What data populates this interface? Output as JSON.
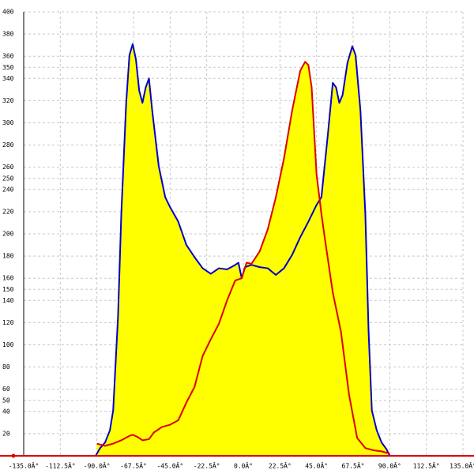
{
  "chart_data": {
    "type": "area-line",
    "fill_color": "#ffff00",
    "axis_color": "#dd0000",
    "grid": true,
    "xlim": [
      -135,
      135
    ],
    "ylim": [
      0,
      400
    ],
    "xticks": [
      {
        "value": -135,
        "label": "-135.0Â°"
      },
      {
        "value": -112.5,
        "label": "-112.5Â°"
      },
      {
        "value": -90,
        "label": "-90.0Â°"
      },
      {
        "value": -67.5,
        "label": "-67.5Â°"
      },
      {
        "value": -45,
        "label": "-45.0Â°"
      },
      {
        "value": -22.5,
        "label": "-22.5Â°"
      },
      {
        "value": 0,
        "label": "0.0Â°"
      },
      {
        "value": 22.5,
        "label": "22.5Â°"
      },
      {
        "value": 45,
        "label": "45.0Â°"
      },
      {
        "value": 67.5,
        "label": "67.5Â°"
      },
      {
        "value": 90,
        "label": "90.0Â°"
      },
      {
        "value": 112.5,
        "label": "112.5Â°"
      },
      {
        "value": 135,
        "label": "135.0Â°"
      }
    ],
    "yticks": [
      20,
      40,
      50,
      60,
      80,
      100,
      120,
      140,
      150,
      160,
      180,
      200,
      220,
      240,
      250,
      260,
      280,
      300,
      320,
      340,
      350,
      360,
      380,
      400
    ],
    "series": [
      {
        "color": "#0000cc",
        "x": [
          -90.8,
          -88,
          -85,
          -82,
          -80,
          -77,
          -75,
          -72,
          -70,
          -68,
          -66,
          -64,
          -62,
          -60,
          -58,
          -56,
          -52,
          -48,
          -45,
          -40,
          -35,
          -30,
          -25,
          -20,
          -15,
          -10,
          -5,
          -3,
          -1,
          1,
          5,
          10,
          15,
          20,
          25,
          30,
          35,
          40,
          45,
          48,
          52,
          55,
          57,
          59,
          61,
          64,
          67,
          69,
          72,
          75,
          77,
          79,
          82,
          85,
          88,
          90
        ],
        "values": [
          0,
          7,
          12,
          23,
          41,
          126,
          218,
          318,
          361,
          371,
          357,
          329,
          318,
          332,
          340,
          311,
          261,
          233,
          224,
          211,
          190,
          179,
          169,
          164,
          169,
          168,
          172,
          174,
          160,
          170,
          172,
          170,
          169,
          163,
          169,
          181,
          197,
          211,
          226,
          233,
          290,
          336,
          332,
          318,
          325,
          354,
          369,
          361,
          311,
          218,
          112,
          41,
          23,
          12,
          6,
          0
        ]
      },
      {
        "color": "#dd0000",
        "x": [
          -90,
          -85,
          -80,
          -75,
          -70,
          -68,
          -65,
          -62,
          -58,
          -55,
          -50,
          -45,
          -40,
          -35,
          -30,
          -25,
          -20,
          -15,
          -10,
          -5,
          -1,
          2,
          5,
          10,
          15,
          20,
          25,
          30,
          35,
          38,
          40,
          42,
          45,
          48,
          50,
          55,
          60,
          65,
          70,
          75,
          80,
          85,
          90
        ],
        "values": [
          11,
          9,
          11,
          14,
          18,
          19,
          17,
          14,
          15,
          21,
          26,
          28,
          32,
          48,
          62,
          90,
          105,
          119,
          140,
          158,
          160,
          174,
          173,
          184,
          204,
          233,
          268,
          311,
          347,
          355,
          352,
          332,
          254,
          218,
          197,
          147,
          112,
          55,
          16,
          7,
          5,
          4,
          2
        ]
      }
    ]
  }
}
